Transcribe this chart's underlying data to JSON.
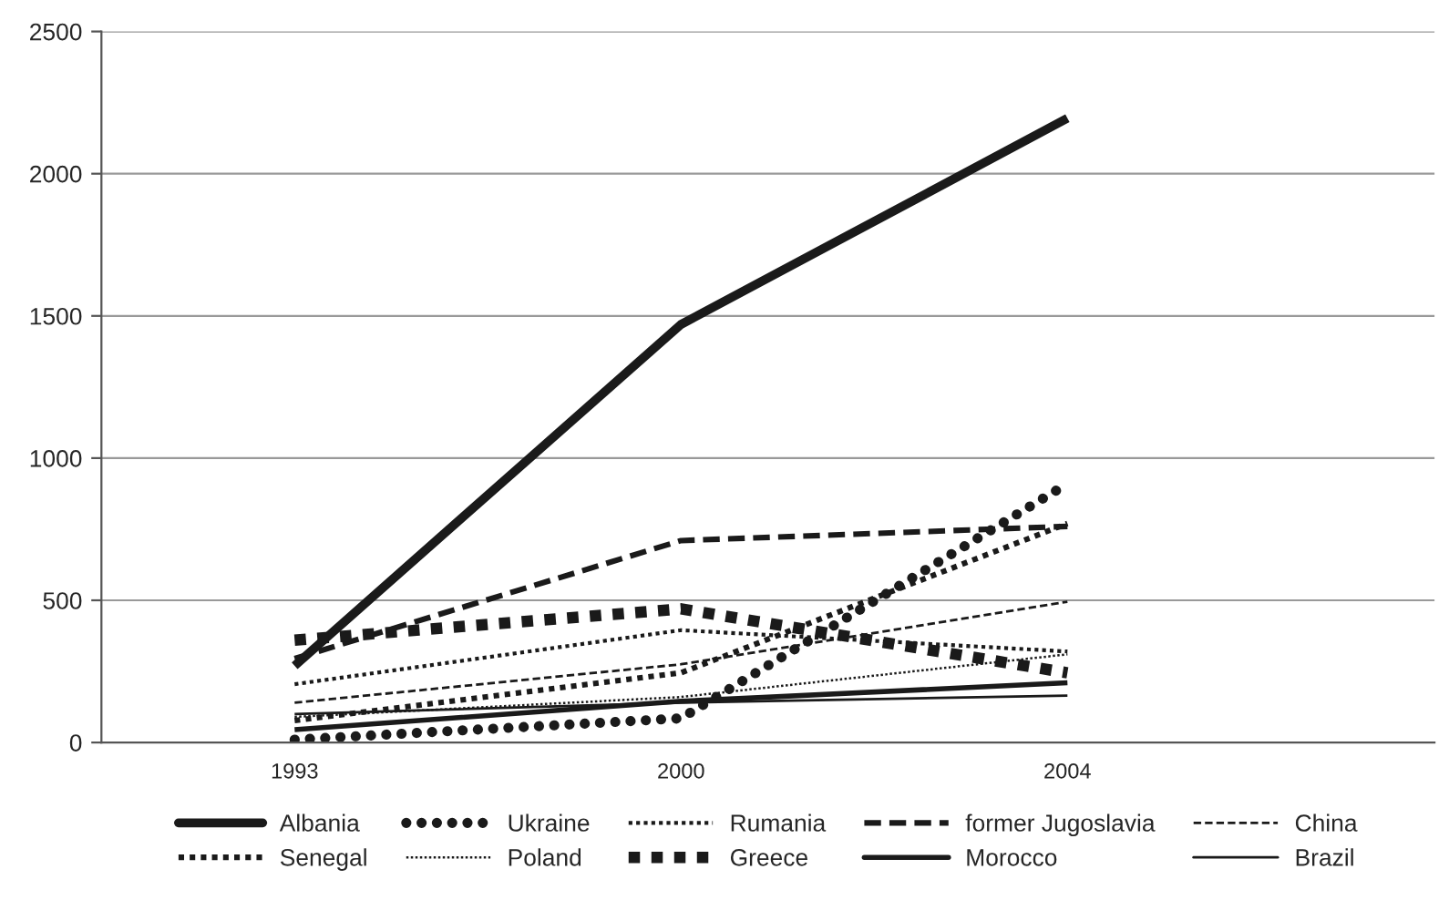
{
  "chart_data": {
    "type": "line",
    "categories": [
      "1993",
      "2000",
      "2004"
    ],
    "ylim": [
      0,
      2500
    ],
    "yticks": [
      0,
      500,
      1000,
      1500,
      2000,
      2500
    ],
    "grid": "y",
    "legend": "bottom",
    "marker": "none",
    "series": [
      {
        "name": "Albania",
        "color": "#1a1a1a",
        "line_style": "solid",
        "values": [
          270,
          1470,
          2195
        ]
      },
      {
        "name": "Ukraine",
        "color": "#1a1a1a",
        "line_style": "dotted",
        "values": [
          10,
          85,
          910
        ]
      },
      {
        "name": "Rumania",
        "color": "#1a1a1a",
        "line_style": "dotted",
        "values": [
          205,
          395,
          320
        ]
      },
      {
        "name": "former Jugoslavia",
        "color": "#1a1a1a",
        "line_style": "dashed",
        "values": [
          295,
          710,
          760
        ]
      },
      {
        "name": "China",
        "color": "#1a1a1a",
        "line_style": "dashed",
        "values": [
          140,
          275,
          495
        ]
      },
      {
        "name": "Senegal",
        "color": "#1a1a1a",
        "line_style": "dotted",
        "values": [
          77,
          245,
          770
        ]
      },
      {
        "name": "Poland",
        "color": "#1a1a1a",
        "line_style": "dotted",
        "values": [
          90,
          160,
          310
        ]
      },
      {
        "name": "Greece",
        "color": "#1a1a1a",
        "line_style": "dotted",
        "values": [
          360,
          470,
          245
        ]
      },
      {
        "name": "Morocco",
        "color": "#1a1a1a",
        "line_style": "solid",
        "values": [
          45,
          145,
          210
        ]
      },
      {
        "name": "Brazil",
        "color": "#1a1a1a",
        "line_style": "solid",
        "values": [
          100,
          140,
          165
        ]
      }
    ]
  }
}
